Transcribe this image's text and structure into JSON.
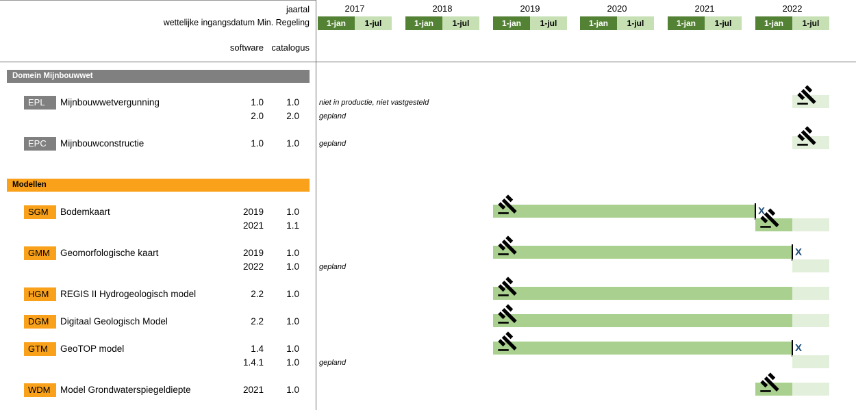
{
  "header": {
    "jaartal_label": "jaartal",
    "regeling_label": "wettelijke ingangsdatum Min. Regeling",
    "software_label": "software",
    "catalogus_label": "catalogus",
    "years": [
      "2017",
      "2018",
      "2019",
      "2020",
      "2021",
      "2022"
    ],
    "half_labels": [
      "1-jan",
      "1-jul"
    ]
  },
  "colors": {
    "dark_green": "#548235",
    "light_green": "#c6e0b4",
    "bar_green": "#a9d08e",
    "bar_pale": "#e2efda",
    "gray": "#808080",
    "orange": "#f9a11b",
    "x_mark": "#1f4e79",
    "divider": "#6f6f6f"
  },
  "sections": [
    {
      "id": "mijnbouwwet",
      "title": "Domein Mijnbouwwet",
      "theme": "gray",
      "rows": [
        {
          "id": "EPL",
          "code": "EPL",
          "name": "Mijnbouwwetvergunning",
          "versions": [
            {
              "software": "1.0",
              "catalogus": "1.0",
              "note": "niet in productie, niet vastgesteld"
            },
            {
              "software": "2.0",
              "catalogus": "2.0",
              "note": "gepland"
            }
          ]
        },
        {
          "id": "EPC",
          "code": "EPC",
          "name": "Mijnbouwconstructie",
          "versions": [
            {
              "software": "1.0",
              "catalogus": "1.0",
              "note": "gepland"
            }
          ]
        }
      ]
    },
    {
      "id": "modellen",
      "title": "Modellen",
      "theme": "orange",
      "rows": [
        {
          "id": "SGM",
          "code": "SGM",
          "name": "Bodemkaart",
          "versions": [
            {
              "software": "2019",
              "catalogus": "1.0"
            },
            {
              "software": "2021",
              "catalogus": "1.1"
            }
          ]
        },
        {
          "id": "GMM",
          "code": "GMM",
          "name": "Geomorfologische kaart",
          "versions": [
            {
              "software": "2019",
              "catalogus": "1.0"
            },
            {
              "software": "2022",
              "catalogus": "1.0",
              "note": "gepland"
            }
          ]
        },
        {
          "id": "HGM",
          "code": "HGM",
          "name": "REGIS II Hydrogeologisch model",
          "versions": [
            {
              "software": "2.2",
              "catalogus": "1.0"
            }
          ]
        },
        {
          "id": "DGM",
          "code": "DGM",
          "name": "Digitaal Geologisch Model",
          "versions": [
            {
              "software": "2.2",
              "catalogus": "1.0"
            }
          ]
        },
        {
          "id": "GTM",
          "code": "GTM",
          "name": "GeoTOP model",
          "versions": [
            {
              "software": "1.4",
              "catalogus": "1.0"
            },
            {
              "software": "1.4.1",
              "catalogus": "1.0",
              "note": "gepland"
            }
          ]
        },
        {
          "id": "WDM",
          "code": "WDM",
          "name": "Model Grondwaterspiegeldiepte",
          "versions": [
            {
              "software": "2021",
              "catalogus": "1.0"
            }
          ]
        }
      ]
    }
  ],
  "chart_data": {
    "type": "bar",
    "subtype": "gantt-timeline",
    "xlabel": "jaartal",
    "x_ticks_years": [
      "2017",
      "2018",
      "2019",
      "2020",
      "2021",
      "2022"
    ],
    "x_subticks_per_year": [
      "1-jan",
      "1-jul"
    ],
    "x_range": [
      "2017-01",
      "2023-01"
    ],
    "grid": false,
    "end_marker_char": "X",
    "bars": [
      {
        "row": "EPL-v1",
        "product": "EPL",
        "version": "1.0",
        "segments": [
          {
            "from": "2022-07",
            "to": "2023-01",
            "style": "pale"
          }
        ],
        "gavel_at": "2022-07",
        "end_marker": false
      },
      {
        "row": "EPC-v1",
        "product": "EPC",
        "version": "1.0",
        "segments": [
          {
            "from": "2022-07",
            "to": "2023-01",
            "style": "pale"
          }
        ],
        "gavel_at": "2022-07",
        "end_marker": false
      },
      {
        "row": "SGM-v1",
        "product": "SGM",
        "version": "2019",
        "segments": [
          {
            "from": "2019-01",
            "to": "2022-01",
            "style": "solid"
          }
        ],
        "gavel_at": "2019-01",
        "end_marker": true
      },
      {
        "row": "SGM-v2",
        "product": "SGM",
        "version": "2021",
        "segments": [
          {
            "from": "2022-01",
            "to": "2022-07",
            "style": "solid"
          },
          {
            "from": "2022-07",
            "to": "2023-01",
            "style": "pale"
          }
        ],
        "gavel_at": "2022-01",
        "end_marker": false
      },
      {
        "row": "GMM-v1",
        "product": "GMM",
        "version": "2019",
        "segments": [
          {
            "from": "2019-01",
            "to": "2022-07",
            "style": "solid"
          }
        ],
        "gavel_at": "2019-01",
        "end_marker": true
      },
      {
        "row": "GMM-v2",
        "product": "GMM",
        "version": "2022",
        "segments": [
          {
            "from": "2022-07",
            "to": "2023-01",
            "style": "pale"
          }
        ],
        "end_marker": false
      },
      {
        "row": "HGM-v1",
        "product": "HGM",
        "version": "2.2",
        "segments": [
          {
            "from": "2019-01",
            "to": "2022-07",
            "style": "solid"
          },
          {
            "from": "2022-07",
            "to": "2023-01",
            "style": "pale"
          }
        ],
        "gavel_at": "2019-01",
        "end_marker": false
      },
      {
        "row": "DGM-v1",
        "product": "DGM",
        "version": "2.2",
        "segments": [
          {
            "from": "2019-01",
            "to": "2022-07",
            "style": "solid"
          },
          {
            "from": "2022-07",
            "to": "2023-01",
            "style": "pale"
          }
        ],
        "gavel_at": "2019-01",
        "end_marker": false
      },
      {
        "row": "GTM-v1",
        "product": "GTM",
        "version": "1.4",
        "segments": [
          {
            "from": "2019-01",
            "to": "2022-07",
            "style": "solid"
          }
        ],
        "gavel_at": "2019-01",
        "end_marker": true
      },
      {
        "row": "GTM-v2",
        "product": "GTM",
        "version": "1.4.1",
        "segments": [
          {
            "from": "2022-07",
            "to": "2023-01",
            "style": "pale"
          }
        ],
        "end_marker": false
      },
      {
        "row": "WDM-v1",
        "product": "WDM",
        "version": "2021",
        "segments": [
          {
            "from": "2022-01",
            "to": "2022-07",
            "style": "solid"
          },
          {
            "from": "2022-07",
            "to": "2023-01",
            "style": "pale"
          }
        ],
        "gavel_at": "2022-01",
        "end_marker": false
      }
    ]
  }
}
